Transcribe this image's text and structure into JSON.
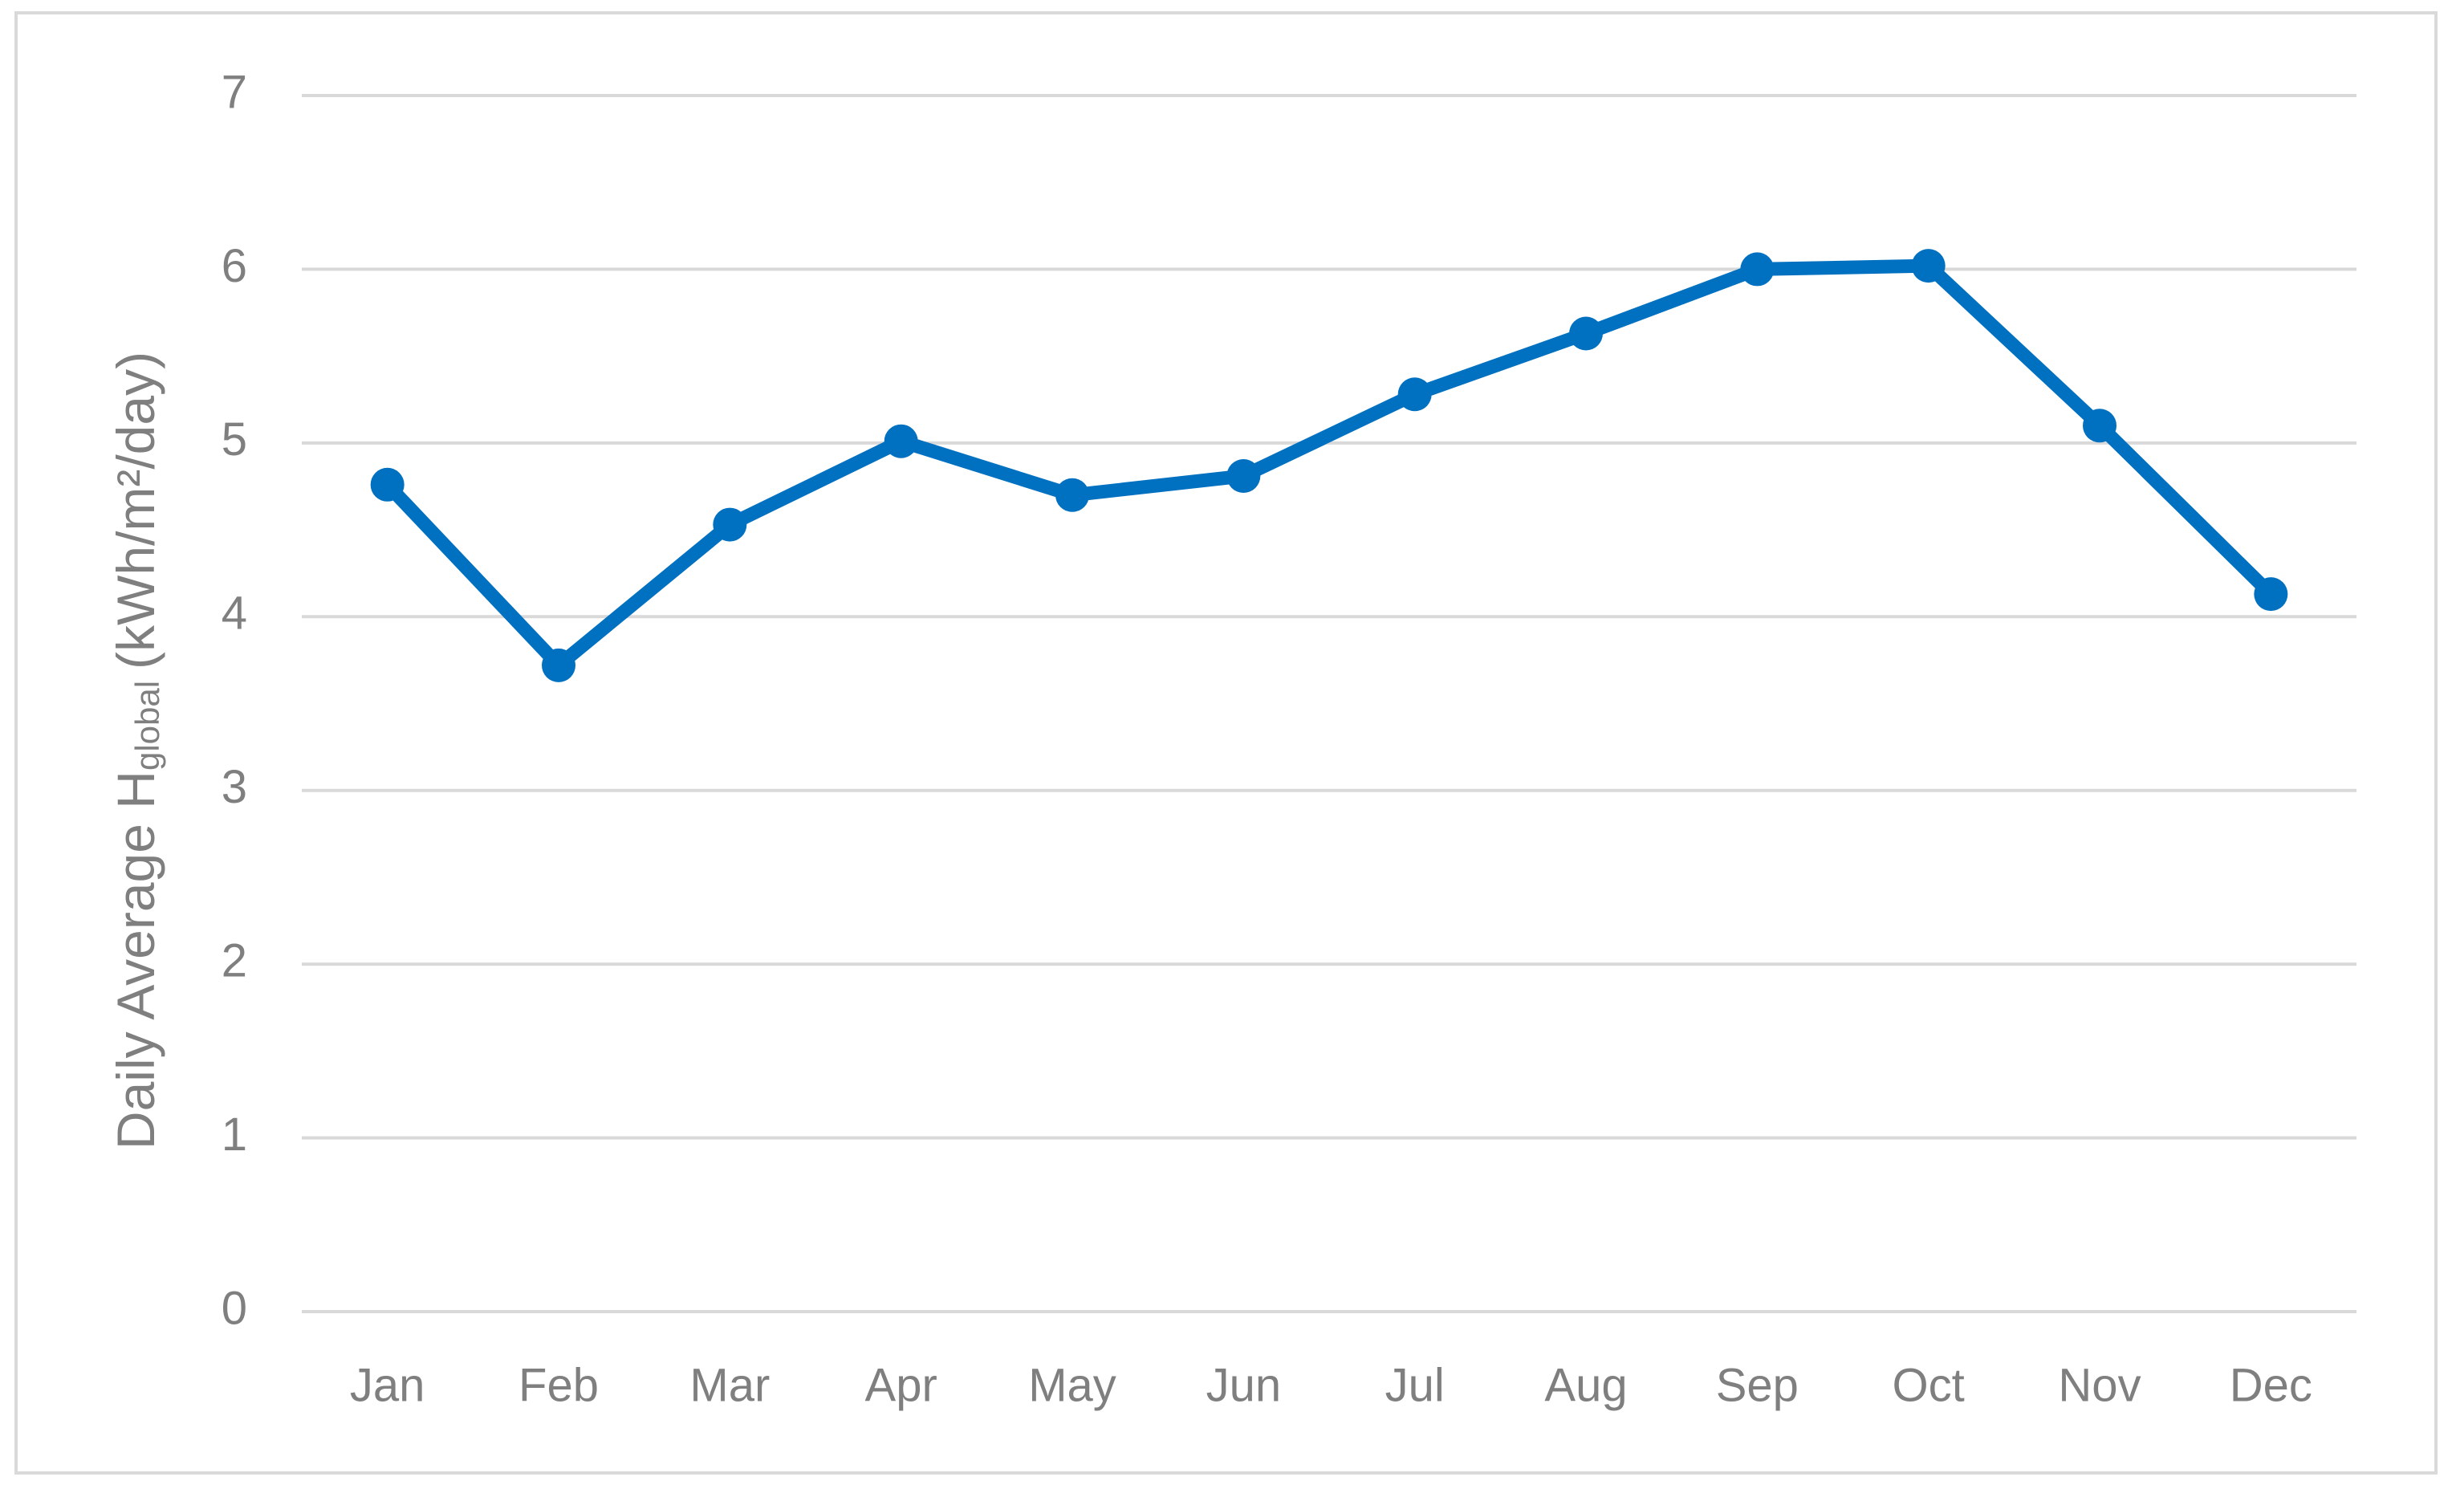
{
  "chart_data": {
    "type": "line",
    "y_label": {
      "main": "Daily Average H",
      "sub": "global",
      "unit": "(kWh/m²/day)"
    },
    "categories": [
      "Jan",
      "Feb",
      "Mar",
      "Apr",
      "May",
      "Jun",
      "Jul",
      "Aug",
      "Sep",
      "Oct",
      "Nov",
      "Dec"
    ],
    "series": [
      {
        "color": "#0070c0",
        "values": [
          4.76,
          3.72,
          4.53,
          5.01,
          4.7,
          4.81,
          5.28,
          5.63,
          6.0,
          6.02,
          5.1,
          4.13
        ]
      }
    ],
    "ylim": [
      0,
      7
    ],
    "yticks": [
      0,
      1,
      2,
      3,
      4,
      5,
      6,
      7
    ],
    "grid": true
  }
}
